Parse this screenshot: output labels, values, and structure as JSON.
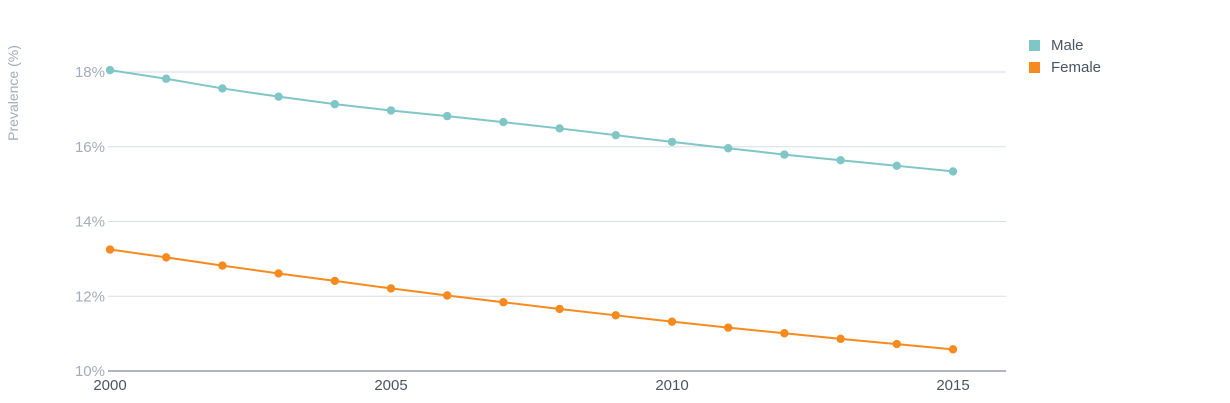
{
  "chart_data": {
    "type": "line",
    "title": "",
    "xlabel": "",
    "ylabel": "Prevalence (%)",
    "x": [
      2000,
      2001,
      2002,
      2003,
      2004,
      2005,
      2006,
      2007,
      2008,
      2009,
      2010,
      2011,
      2012,
      2013,
      2014,
      2015
    ],
    "xticks": [
      "2000",
      "2005",
      "2010",
      "2015"
    ],
    "yticks": [
      "10%",
      "12%",
      "14%",
      "16%",
      "18%"
    ],
    "ylim": [
      10,
      18
    ],
    "xlim": [
      2000,
      2016
    ],
    "grid": true,
    "legend_position": "top-right",
    "series": [
      {
        "name": "Male",
        "color": "#80c6c6",
        "values": [
          18.05,
          17.82,
          17.56,
          17.34,
          17.14,
          16.97,
          16.82,
          16.66,
          16.49,
          16.31,
          16.13,
          15.96,
          15.79,
          15.64,
          15.49,
          15.34
        ]
      },
      {
        "name": "Female",
        "color": "#f58a1f",
        "values": [
          13.25,
          13.04,
          12.82,
          12.61,
          12.41,
          12.21,
          12.02,
          11.84,
          11.66,
          11.49,
          11.32,
          11.16,
          11.01,
          10.86,
          10.72,
          10.58
        ]
      }
    ]
  }
}
